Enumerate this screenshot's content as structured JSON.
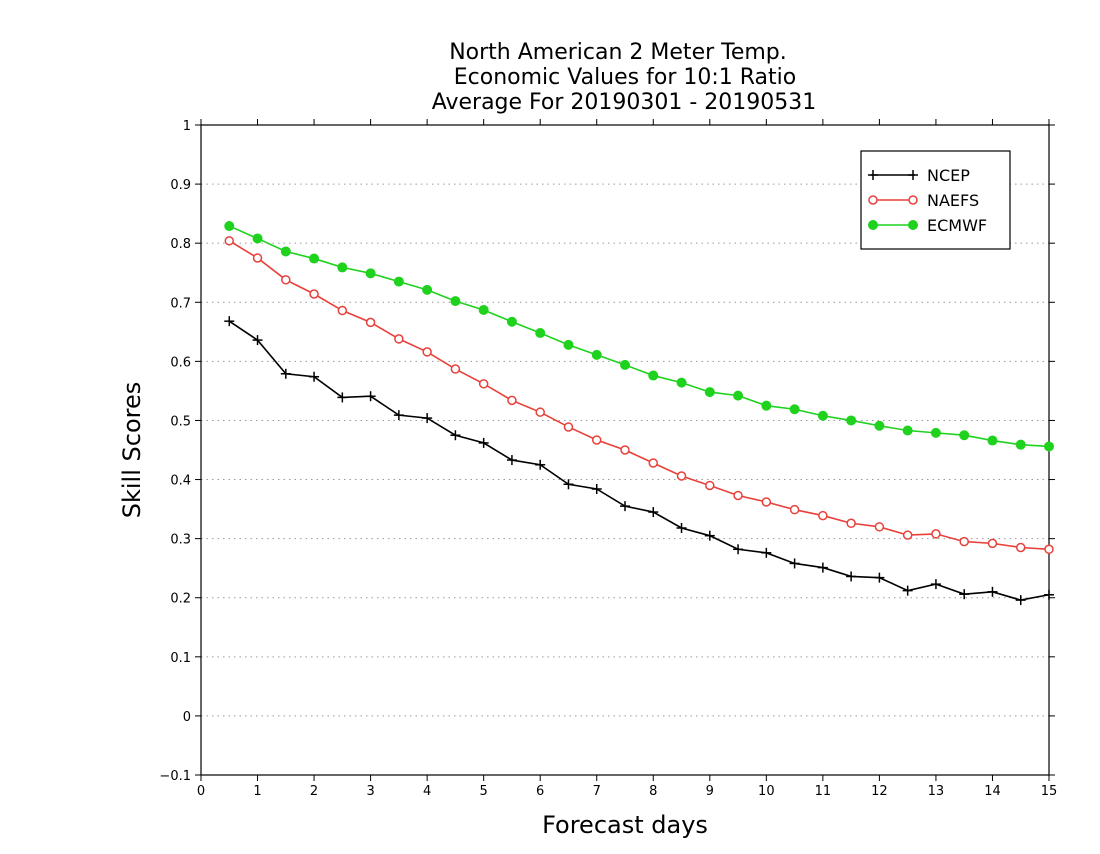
{
  "chart_data": {
    "type": "line",
    "title": [
      "North American 2 Meter Temp.",
      "Economic Values for 10:1 Ratio",
      "Average For 20190301 - 20190531"
    ],
    "xlabel": "Forecast days",
    "ylabel": "Skill Scores",
    "xlim": [
      0,
      15
    ],
    "ylim": [
      -0.1,
      1
    ],
    "xticks": [
      "0",
      "1",
      "2",
      "3",
      "4",
      "5",
      "6",
      "7",
      "8",
      "9",
      "10",
      "11",
      "12",
      "13",
      "14",
      "15"
    ],
    "yticks": [
      "−0.1",
      "0",
      "0.1",
      "0.2",
      "0.3",
      "0.4",
      "0.5",
      "0.6",
      "0.7",
      "0.8",
      "0.9",
      "1"
    ],
    "grid": "horizontal dotted",
    "legend_position": "top-right",
    "x": [
      0.5,
      1,
      1.5,
      2,
      2.5,
      3,
      3.5,
      4,
      4.5,
      5,
      5.5,
      6,
      6.5,
      7,
      7.5,
      8,
      8.5,
      9,
      9.5,
      10,
      10.5,
      11,
      11.5,
      12,
      12.5,
      13,
      13.5,
      14,
      14.5,
      15
    ],
    "series": [
      {
        "name": "NCEP",
        "color": "#000000",
        "marker": "plus",
        "values": [
          0.668,
          0.636,
          0.579,
          0.574,
          0.539,
          0.541,
          0.509,
          0.504,
          0.475,
          0.462,
          0.433,
          0.425,
          0.392,
          0.384,
          0.355,
          0.345,
          0.318,
          0.305,
          0.282,
          0.276,
          0.258,
          0.251,
          0.236,
          0.234,
          0.212,
          0.223,
          0.206,
          0.21,
          0.196,
          0.205
        ]
      },
      {
        "name": "NAEFS",
        "color": "#e8403a",
        "marker": "open-circle",
        "values": [
          0.804,
          0.775,
          0.738,
          0.714,
          0.686,
          0.666,
          0.638,
          0.616,
          0.587,
          0.562,
          0.534,
          0.514,
          0.489,
          0.467,
          0.45,
          0.428,
          0.406,
          0.39,
          0.373,
          0.362,
          0.349,
          0.339,
          0.326,
          0.32,
          0.306,
          0.308,
          0.295,
          0.292,
          0.285,
          0.282
        ]
      },
      {
        "name": "ECMWF",
        "color": "#1ed21e",
        "marker": "filled-circle",
        "values": [
          0.829,
          0.808,
          0.786,
          0.774,
          0.759,
          0.749,
          0.735,
          0.721,
          0.702,
          0.687,
          0.667,
          0.648,
          0.628,
          0.611,
          0.594,
          0.576,
          0.564,
          0.548,
          0.542,
          0.525,
          0.519,
          0.508,
          0.5,
          0.491,
          0.483,
          0.479,
          0.475,
          0.466,
          0.459,
          0.456
        ]
      }
    ]
  }
}
